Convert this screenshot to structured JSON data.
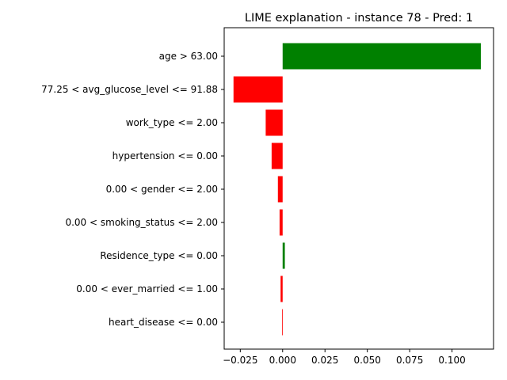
{
  "chart_data": {
    "type": "bar",
    "orientation": "horizontal",
    "title": "LIME explanation - instance 78 - Pred: 1",
    "xlabel": "",
    "ylabel": "",
    "categories": [
      "age > 63.00",
      "77.25 < avg_glucose_level <= 91.88",
      "work_type <= 2.00",
      "hypertension <= 0.00",
      "0.00 < gender <= 2.00",
      "0.00 < smoking_status <= 2.00",
      "Residence_type <= 0.00",
      "0.00 < ever_married <= 1.00",
      "heart_disease <= 0.00"
    ],
    "values": [
      0.117,
      -0.029,
      -0.01,
      -0.0065,
      -0.0028,
      -0.0018,
      0.0013,
      -0.0012,
      -0.0003
    ],
    "xlim": [
      -0.0345,
      0.1245
    ],
    "xticks": [
      -0.025,
      0.0,
      0.025,
      0.05,
      0.075,
      0.1
    ],
    "xtick_labels": [
      "−0.025",
      "0.000",
      "0.025",
      "0.050",
      "0.075",
      "0.100"
    ],
    "grid": false,
    "colors": {
      "positive": "#008000",
      "negative": "#ff0000"
    }
  }
}
